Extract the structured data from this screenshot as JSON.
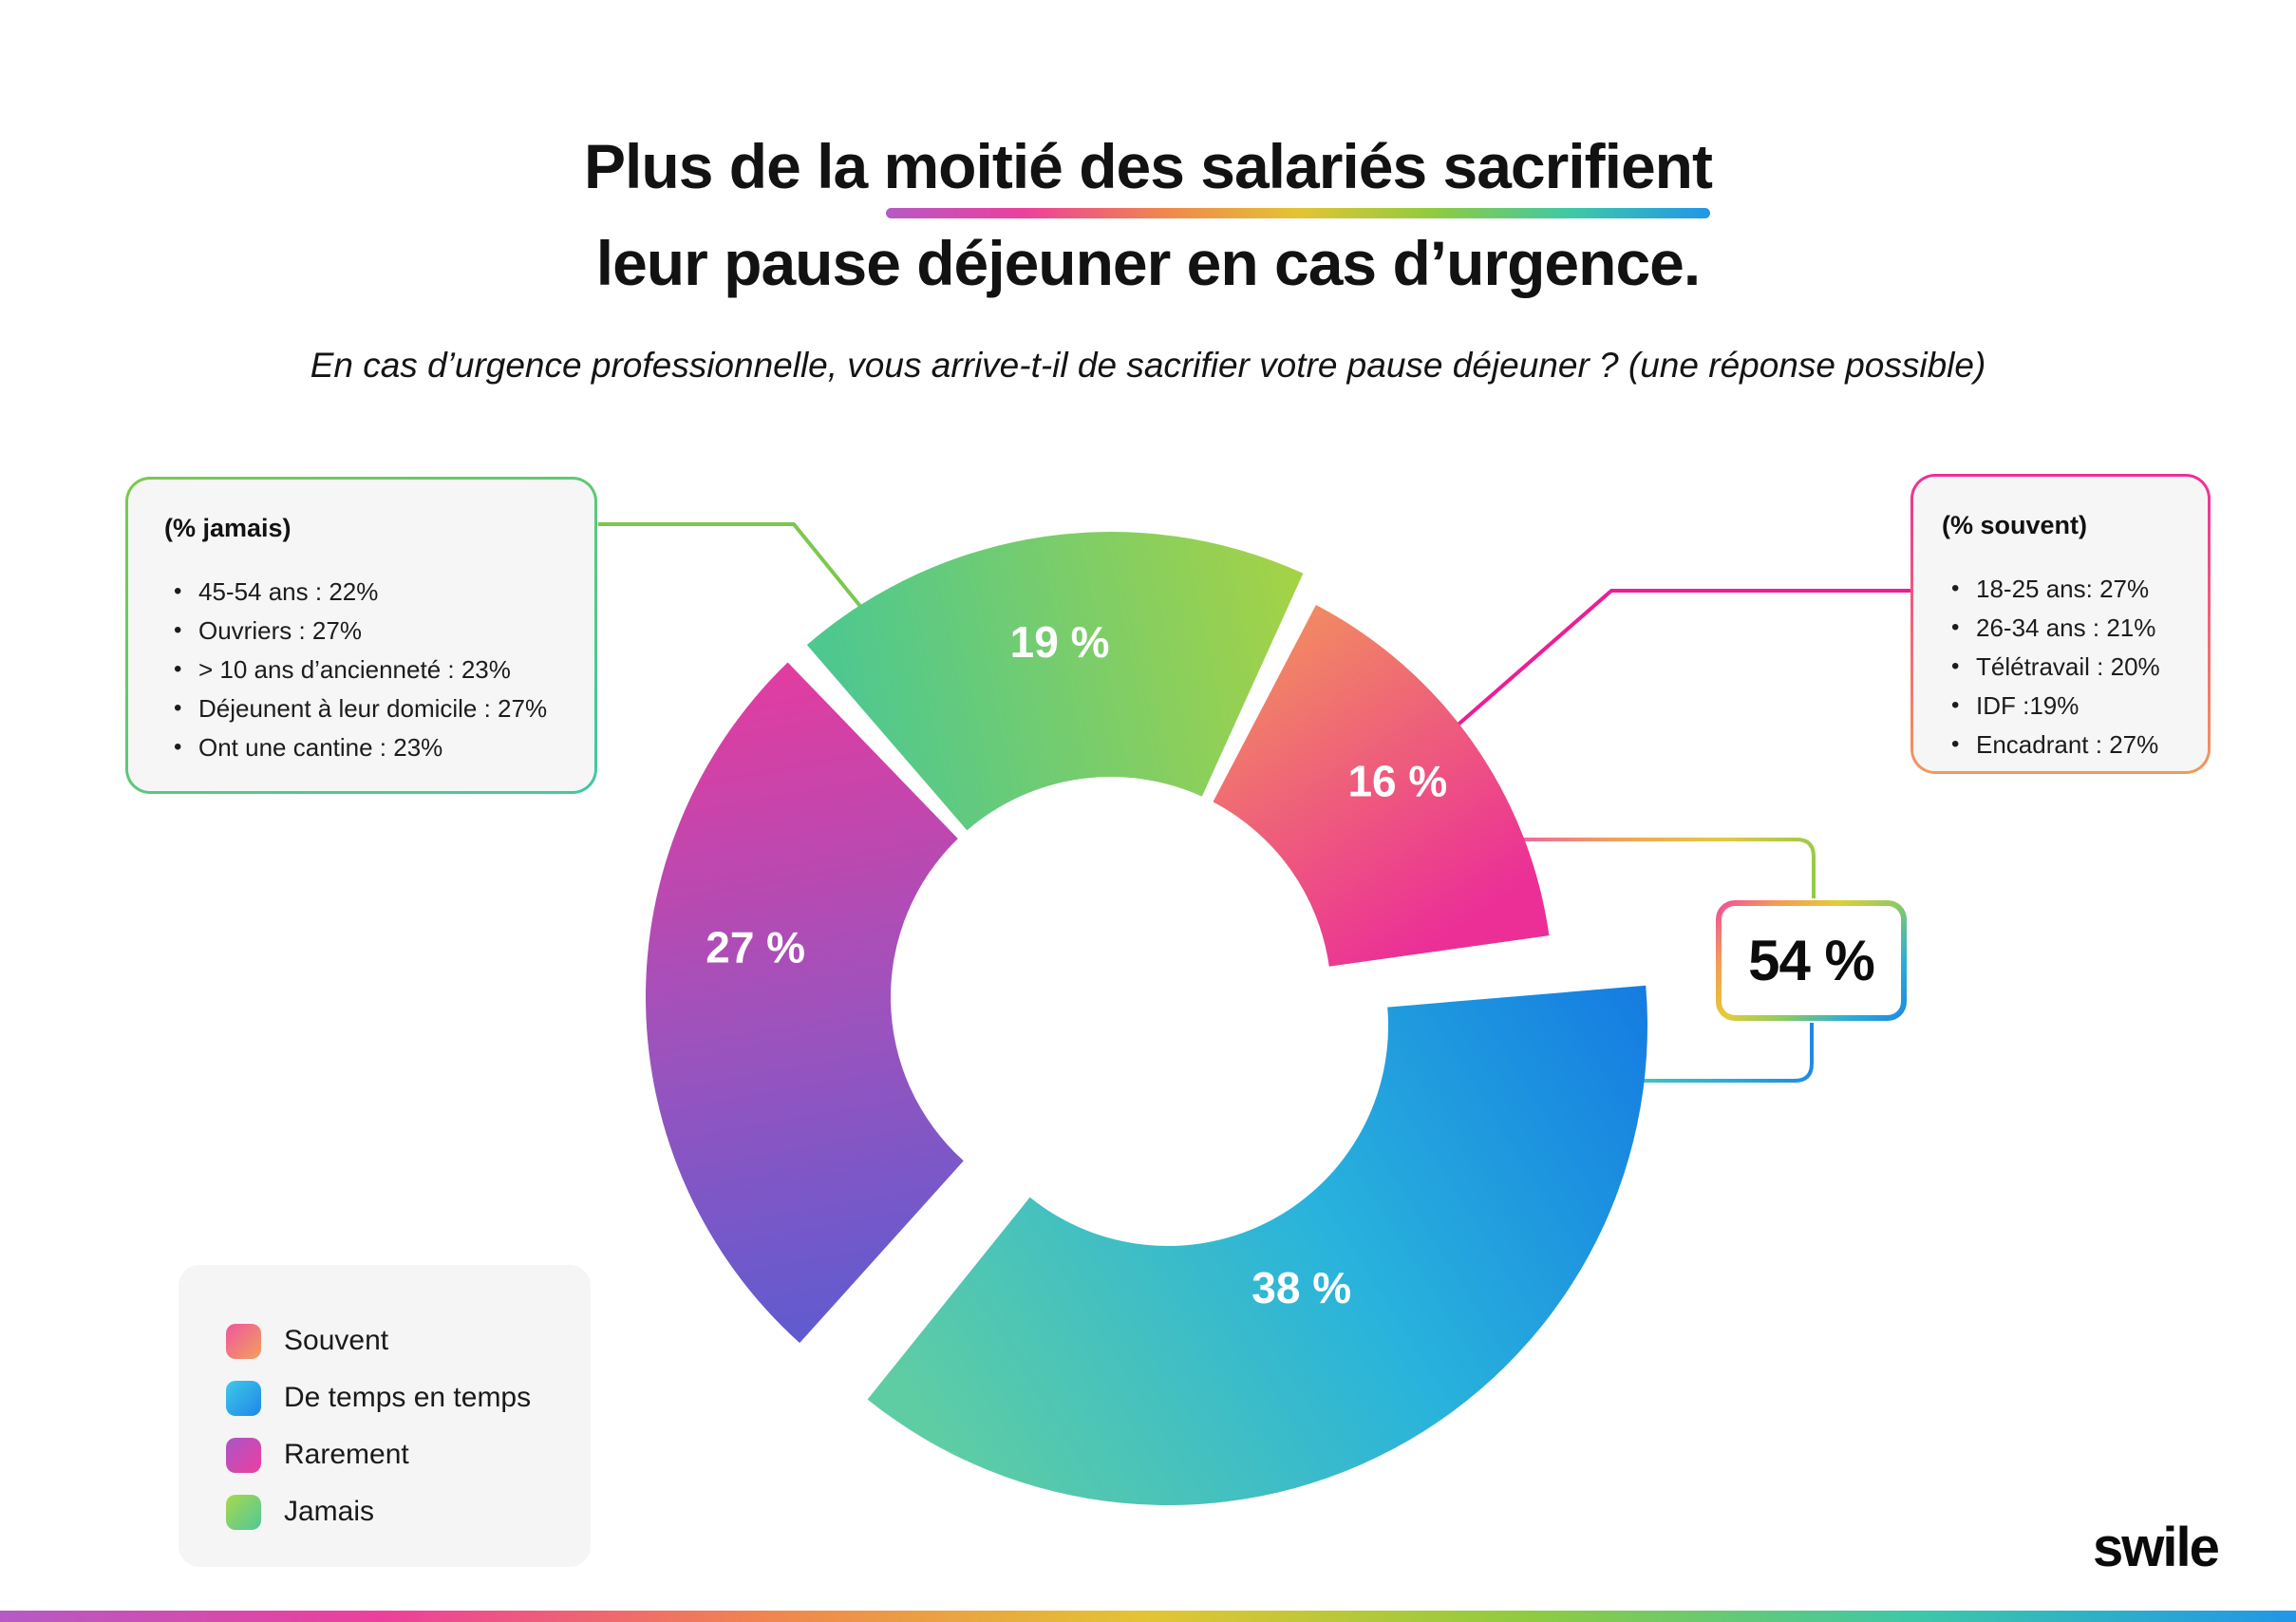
{
  "title": {
    "prefix": "Plus de la ",
    "underlined": "moitié des salariés sacrifient",
    "line2": "leur pause déjeuner en cas d’urgence."
  },
  "subtitle": "En cas d’urgence professionnelle, vous arrive-t-il de sacrifier votre pause déjeuner ?  (une réponse possible)",
  "chart_data": {
    "type": "pie",
    "donut": true,
    "title": "Plus de la moitié des salariés sacrifient leur pause déjeuner en cas d’urgence.",
    "question": "En cas d’urgence professionnelle, vous arrive-t-il de sacrifier votre pause déjeuner ? (une réponse possible)",
    "slices": [
      {
        "id": "souvent",
        "label": "Souvent",
        "value": 16,
        "display": "16 %",
        "colors": [
          "#F2955B",
          "#EB2F97"
        ]
      },
      {
        "id": "detemps",
        "label": "De temps en temps",
        "value": 38,
        "display": "38 %",
        "colors": [
          "#5ECDA4",
          "#29B3DC",
          "#1377E2"
        ]
      },
      {
        "id": "rarement",
        "label": "Rarement",
        "value": 27,
        "display": "27 %",
        "colors": [
          "#E93A9D",
          "#9A53BE",
          "#4A5ED6"
        ]
      },
      {
        "id": "jamais",
        "label": "Jamais",
        "value": 19,
        "display": "19 %",
        "colors": [
          "#4EC88F",
          "#B5D438"
        ]
      }
    ],
    "highlight": {
      "value": 54,
      "display": "54 %"
    },
    "legend_position": "bottom-left"
  },
  "callout_jamais": {
    "heading": "(% jamais)",
    "items": [
      "45-54 ans : 22%",
      "Ouvriers : 27%",
      "> 10 ans d’ancienneté : 23%",
      "Déjeunent à leur domicile : 27%",
      "Ont une cantine : 23%"
    ],
    "border_colors": [
      "#7CC84E",
      "#3EC9A4"
    ]
  },
  "callout_souvent": {
    "heading": "(% souvent)",
    "items": [
      "18-25 ans: 27%",
      "26-34 ans : 21%",
      "Télétravail : 20%",
      "IDF :19%",
      "Encadrant : 27%"
    ],
    "border_colors": [
      "#ED2F97",
      "#F2995C"
    ]
  },
  "badge": {
    "display": "54 %",
    "border_colors": [
      "#EE47A1",
      "#F59A56",
      "#E3CC38",
      "#8BCB62",
      "#2BAED6",
      "#1E86E6"
    ]
  },
  "legend": [
    {
      "label": "Souvent",
      "colors": [
        "#F0569E",
        "#F2A05C"
      ]
    },
    {
      "label": "De temps en temps",
      "colors": [
        "#3FC9E8",
        "#1F86E8"
      ]
    },
    {
      "label": "Rarement",
      "colors": [
        "#A855C8",
        "#EE3F9F"
      ]
    },
    {
      "label": "Jamais",
      "colors": [
        "#A8D84F",
        "#4FC996"
      ]
    }
  ],
  "brand": "swile",
  "palette": {
    "rainbow": [
      "#B55AC5",
      "#ED3F9C",
      "#F0854F",
      "#E3C433",
      "#8FCB40",
      "#3EC8A8",
      "#2196E8"
    ],
    "line_jamais": "#7CC84E",
    "line_souvent": "#EC1E96",
    "bracket_top": [
      "#EE5FA6",
      "#F2A05C",
      "#E5C93E",
      "#93CA4B"
    ],
    "bracket_bottom": [
      "#1E86E6",
      "#2BAED6",
      "#4AC8BC"
    ]
  }
}
